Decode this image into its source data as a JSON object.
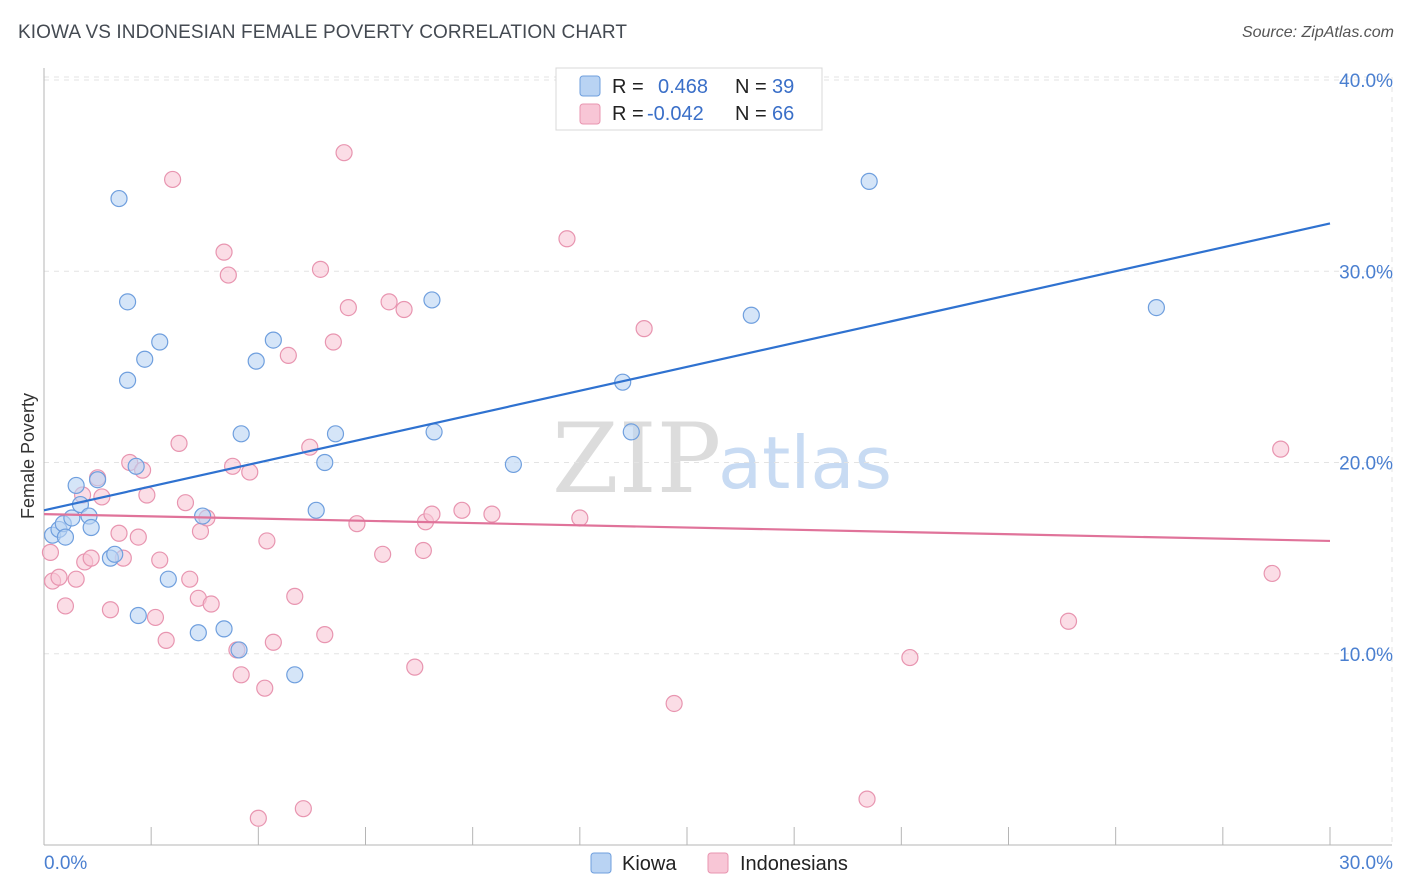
{
  "header": {
    "title": "KIOWA VS INDONESIAN FEMALE POVERTY CORRELATION CHART",
    "source": "Source: ZipAtlas.com"
  },
  "watermark": {
    "zip": "ZIP",
    "atlas": "atlas"
  },
  "colors": {
    "kiowa_fill": "#b9d3f3",
    "kiowa_stroke": "#6f9fde",
    "kiowa_line": "#2f72d0",
    "indonesian_fill": "#f8c6d6",
    "indonesian_stroke": "#e895b0",
    "indonesian_line": "#e0739a",
    "grid": "#e3e3e3",
    "axis_text": "#4a7fd0"
  },
  "legend": {
    "rows": [
      {
        "r_label": "R =",
        "r_value": "0.468",
        "n_label": "N =",
        "n_value": "39"
      },
      {
        "r_label": "R =",
        "r_value": "-0.042",
        "n_label": "N =",
        "n_value": "66"
      }
    ]
  },
  "chart_data": {
    "type": "scatter",
    "title": "KIOWA VS INDONESIAN FEMALE POVERTY CORRELATION CHART",
    "xlabel": "",
    "ylabel": "Female Poverty",
    "xlim": [
      0,
      30
    ],
    "ylim": [
      0,
      40
    ],
    "x_tick_labels": [
      "0.0%",
      "30.0%"
    ],
    "y_tick_labels": [
      "10.0%",
      "20.0%",
      "30.0%",
      "40.0%"
    ],
    "y_ticks": [
      10,
      20,
      30,
      40
    ],
    "grid": "horizontal dashed",
    "legend_position": "top-center",
    "series": [
      {
        "name": "Kiowa",
        "trend": {
          "x0": 0,
          "y0": 17.5,
          "x1": 30,
          "y1": 32.5
        },
        "points": [
          [
            0.2,
            16.2
          ],
          [
            0.35,
            16.5
          ],
          [
            0.45,
            16.8
          ],
          [
            0.5,
            16.1
          ],
          [
            0.65,
            17.1
          ],
          [
            0.75,
            18.8
          ],
          [
            0.85,
            17.8
          ],
          [
            1.05,
            17.2
          ],
          [
            1.1,
            16.6
          ],
          [
            1.25,
            19.1
          ],
          [
            1.55,
            15.0
          ],
          [
            1.65,
            15.2
          ],
          [
            1.75,
            33.8
          ],
          [
            1.95,
            28.4
          ],
          [
            1.95,
            24.3
          ],
          [
            2.15,
            19.8
          ],
          [
            2.2,
            12.0
          ],
          [
            2.35,
            25.4
          ],
          [
            2.7,
            26.3
          ],
          [
            2.9,
            13.9
          ],
          [
            3.6,
            11.1
          ],
          [
            3.7,
            17.2
          ],
          [
            4.2,
            11.3
          ],
          [
            4.55,
            10.2
          ],
          [
            4.6,
            21.5
          ],
          [
            4.95,
            25.3
          ],
          [
            5.35,
            26.4
          ],
          [
            5.85,
            8.9
          ],
          [
            6.35,
            17.5
          ],
          [
            6.8,
            21.5
          ],
          [
            6.55,
            20.0
          ],
          [
            9.05,
            28.5
          ],
          [
            9.1,
            21.6
          ],
          [
            10.95,
            19.9
          ],
          [
            13.5,
            24.2
          ],
          [
            13.7,
            21.6
          ],
          [
            16.5,
            27.7
          ],
          [
            19.25,
            34.7
          ],
          [
            25.95,
            28.1
          ]
        ]
      },
      {
        "name": "Indonesians",
        "trend": {
          "x0": 0,
          "y0": 17.3,
          "x1": 30,
          "y1": 15.9
        },
        "points": [
          [
            0.15,
            15.3
          ],
          [
            0.2,
            13.8
          ],
          [
            0.35,
            14.0
          ],
          [
            0.5,
            12.5
          ],
          [
            0.75,
            13.9
          ],
          [
            0.9,
            18.3
          ],
          [
            0.95,
            14.8
          ],
          [
            1.1,
            15.0
          ],
          [
            1.25,
            19.2
          ],
          [
            1.35,
            18.2
          ],
          [
            1.55,
            12.3
          ],
          [
            1.75,
            16.3
          ],
          [
            1.85,
            15.0
          ],
          [
            2.0,
            20.0
          ],
          [
            2.2,
            16.1
          ],
          [
            2.3,
            19.6
          ],
          [
            2.4,
            18.3
          ],
          [
            2.6,
            11.9
          ],
          [
            2.7,
            14.9
          ],
          [
            2.85,
            10.7
          ],
          [
            3.0,
            34.8
          ],
          [
            3.15,
            21.0
          ],
          [
            3.3,
            17.9
          ],
          [
            3.4,
            13.9
          ],
          [
            3.6,
            12.9
          ],
          [
            3.65,
            16.4
          ],
          [
            3.8,
            17.1
          ],
          [
            3.9,
            12.6
          ],
          [
            4.2,
            31.0
          ],
          [
            4.3,
            29.8
          ],
          [
            4.4,
            19.8
          ],
          [
            4.5,
            10.2
          ],
          [
            4.6,
            8.9
          ],
          [
            4.8,
            19.5
          ],
          [
            5.0,
            1.4
          ],
          [
            5.15,
            8.2
          ],
          [
            5.2,
            15.9
          ],
          [
            5.35,
            10.6
          ],
          [
            5.7,
            25.6
          ],
          [
            5.85,
            13.0
          ],
          [
            6.05,
            1.9
          ],
          [
            6.2,
            20.8
          ],
          [
            6.45,
            30.1
          ],
          [
            6.55,
            11.0
          ],
          [
            6.75,
            26.3
          ],
          [
            7.0,
            36.2
          ],
          [
            7.1,
            28.1
          ],
          [
            7.3,
            16.8
          ],
          [
            7.9,
            15.2
          ],
          [
            8.05,
            28.4
          ],
          [
            8.4,
            28.0
          ],
          [
            8.65,
            9.3
          ],
          [
            8.85,
            15.4
          ],
          [
            8.9,
            16.9
          ],
          [
            9.05,
            17.3
          ],
          [
            9.75,
            17.5
          ],
          [
            10.45,
            17.3
          ],
          [
            12.2,
            31.7
          ],
          [
            12.5,
            17.1
          ],
          [
            14.0,
            27.0
          ],
          [
            14.7,
            7.4
          ],
          [
            19.2,
            2.4
          ],
          [
            20.2,
            9.8
          ],
          [
            23.9,
            11.7
          ],
          [
            28.65,
            14.2
          ],
          [
            28.85,
            20.7
          ]
        ]
      }
    ]
  },
  "bottom_legend": {
    "items": [
      {
        "label": "Kiowa"
      },
      {
        "label": "Indonesians"
      }
    ]
  }
}
